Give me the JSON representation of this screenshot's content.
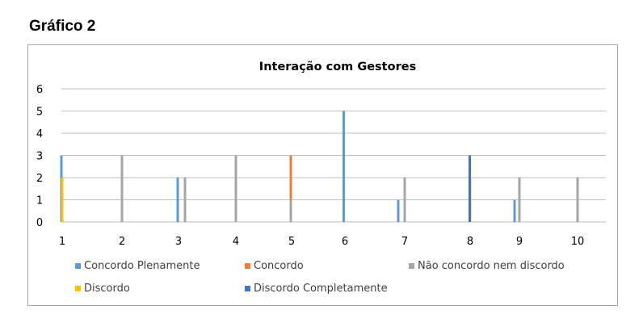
{
  "heading": "Gráfico 2",
  "colors": {
    "gridline": "#bfbfbf",
    "axis_text": "#000000",
    "frame": "#a6a6a6"
  },
  "chart_data": {
    "type": "bar",
    "title": "Interação com Gestores",
    "xlabel": "",
    "ylabel": "",
    "ylim": [
      0,
      6
    ],
    "yticks": [
      0,
      1,
      2,
      3,
      4,
      5,
      6
    ],
    "xticks": [
      "1",
      "2",
      "3",
      "4",
      "5",
      "6",
      "7",
      "8",
      "9",
      "10"
    ],
    "grid": true,
    "legend_position": "bottom",
    "series": [
      {
        "name": "Concordo Plenamente",
        "color": "#5b9bd5",
        "points": [
          {
            "x": 1,
            "y": 3
          },
          {
            "x": 3,
            "y": 2
          },
          {
            "x": 6,
            "y": 5
          },
          {
            "x": 7,
            "y": 1
          },
          {
            "x": 9,
            "y": 1
          }
        ]
      },
      {
        "name": "Concordo",
        "color": "#ed7d31",
        "points": [
          {
            "x": 5,
            "y": 3
          }
        ]
      },
      {
        "name": "Não concordo nem discordo",
        "color": "#a5a5a5",
        "points": [
          {
            "x": 2,
            "y": 3
          },
          {
            "x": 3,
            "y": 2
          },
          {
            "x": 4,
            "y": 3
          },
          {
            "x": 5,
            "y": 1
          },
          {
            "x": 7,
            "y": 2
          },
          {
            "x": 9,
            "y": 2
          },
          {
            "x": 10,
            "y": 2
          }
        ]
      },
      {
        "name": "Discordo",
        "color": "#ffc000",
        "points": [
          {
            "x": 1,
            "y": 2
          },
          {
            "x": 8,
            "y": 2
          }
        ]
      },
      {
        "name": "Discordo Completamente",
        "color": "#4472c4",
        "points": [
          {
            "x": 8,
            "y": 3
          }
        ]
      }
    ]
  }
}
